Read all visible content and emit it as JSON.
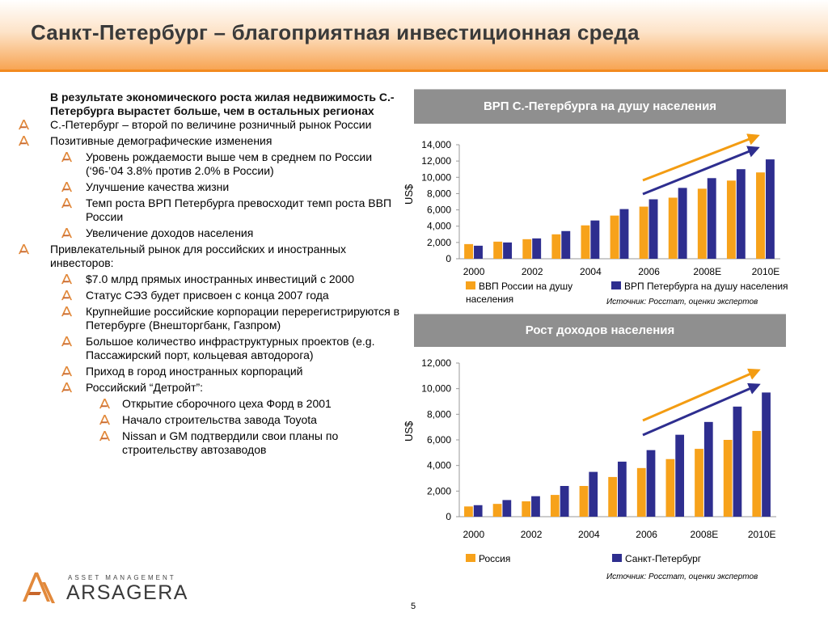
{
  "title": "Санкт-Петербург – благоприятная инвестиционная среда",
  "left": {
    "lead": "В результате экономического роста жилая недвижимость С.-Петербурга вырастет больше, чем в остальных регионах",
    "items": [
      {
        "level": 1,
        "text": "С.-Петербург – второй по величине розничный рынок России"
      },
      {
        "level": 1,
        "text": "Позитивные демографические изменения"
      },
      {
        "level": 2,
        "text": "Уровень рождаемости выше чем в среднем по России (‘96-’04 3.8% против 2.0% в России)"
      },
      {
        "level": 2,
        "text": "Улучшение качества жизни"
      },
      {
        "level": 2,
        "text": "Темп роста ВРП Петербурга превосходит темп роста ВВП России"
      },
      {
        "level": 2,
        "text": "Увеличение доходов населения"
      },
      {
        "level": 1,
        "text": "Привлекательный рынок для российских и иностранных инвесторов:"
      },
      {
        "level": 2,
        "text": "$7.0 млрд прямых иностранных инвестиций с 2000"
      },
      {
        "level": 2,
        "text": "Статус СЭЗ будет присвоен с конца 2007 года"
      },
      {
        "level": 2,
        "text": "Крупнейшие российские корпорации перерегистрируются в Петербурге (Внешторгбанк, Газпром)"
      },
      {
        "level": 2,
        "text": "Большое количество инфраструктурных проектов (e.g. Пассажирский порт, кольцевая автодорога)"
      },
      {
        "level": 2,
        "text": "Приход в город иностранных корпораций"
      },
      {
        "level": 2,
        "text": "Российский “Детройт”:"
      },
      {
        "level": 3,
        "text": "Открытие сборочного цеха Форд в 2001"
      },
      {
        "level": 3,
        "text": "Начало строительства завода Toyota"
      },
      {
        "level": 3,
        "text": "Nissan и GM подтвердили свои планы по строительству автозаводов"
      }
    ]
  },
  "chart1": {
    "header": "ВРП С.-Петербурга на душу населения",
    "ylabel": "US$",
    "source": "Источник: Росстат, оценки экспертов"
  },
  "chart2": {
    "header": "Рост доходов населения",
    "ylabel": "US$",
    "source": "Источник: Росстат, оценки экспертов"
  },
  "colors": {
    "orange": "#f7a21b",
    "navy": "#2e2e8f",
    "arrow_orange": "#f39c12",
    "arrow_navy": "#2e2e8f"
  },
  "logo": {
    "tagline": "ASSET MANAGEMENT",
    "name": "ARSAGERA"
  },
  "page_number": "5",
  "chart_data": [
    {
      "type": "bar",
      "title": "ВРП С.-Петербурга на душу населения",
      "ylabel": "US$",
      "ylim": [
        0,
        14000
      ],
      "yticks": [
        "14,000",
        "12,000",
        "10,000",
        "8,000",
        "6,000",
        "4,000",
        "2,000",
        "0"
      ],
      "categories": [
        "2000",
        "2001",
        "2002",
        "2003",
        "2004",
        "2005",
        "2006",
        "2007",
        "2008E",
        "2009E",
        "2010E"
      ],
      "xtick_labels": [
        "2000",
        "2002",
        "2004",
        "2006",
        "2008E",
        "2010E"
      ],
      "series": [
        {
          "name": "ВВП России на душу населения",
          "values": [
            1800,
            2100,
            2400,
            3000,
            4100,
            5300,
            6400,
            7500,
            8600,
            9600,
            10600
          ]
        },
        {
          "name": "ВРП Петербурга на душу населения",
          "values": [
            1600,
            2000,
            2500,
            3400,
            4700,
            6100,
            7300,
            8700,
            9900,
            11000,
            12200
          ]
        }
      ],
      "legend_position": "bottom"
    },
    {
      "type": "bar",
      "title": "Рост доходов населения",
      "ylabel": "US$",
      "ylim": [
        0,
        12000
      ],
      "yticks": [
        "12,000",
        "10,000",
        "8,000",
        "6,000",
        "4,000",
        "2,000",
        "0"
      ],
      "categories": [
        "2000",
        "2001",
        "2002",
        "2003",
        "2004",
        "2005",
        "2006",
        "2007",
        "2008E",
        "2009E",
        "2010E"
      ],
      "xtick_labels": [
        "2000",
        "2002",
        "2004",
        "2006",
        "2008E",
        "2010E"
      ],
      "series": [
        {
          "name": "Россия",
          "values": [
            800,
            1000,
            1200,
            1700,
            2400,
            3100,
            3800,
            4500,
            5300,
            6000,
            6700
          ]
        },
        {
          "name": "Санкт-Петербург",
          "values": [
            900,
            1300,
            1600,
            2400,
            3500,
            4300,
            5200,
            6400,
            7400,
            8600,
            9700
          ]
        }
      ],
      "legend_position": "bottom"
    }
  ]
}
